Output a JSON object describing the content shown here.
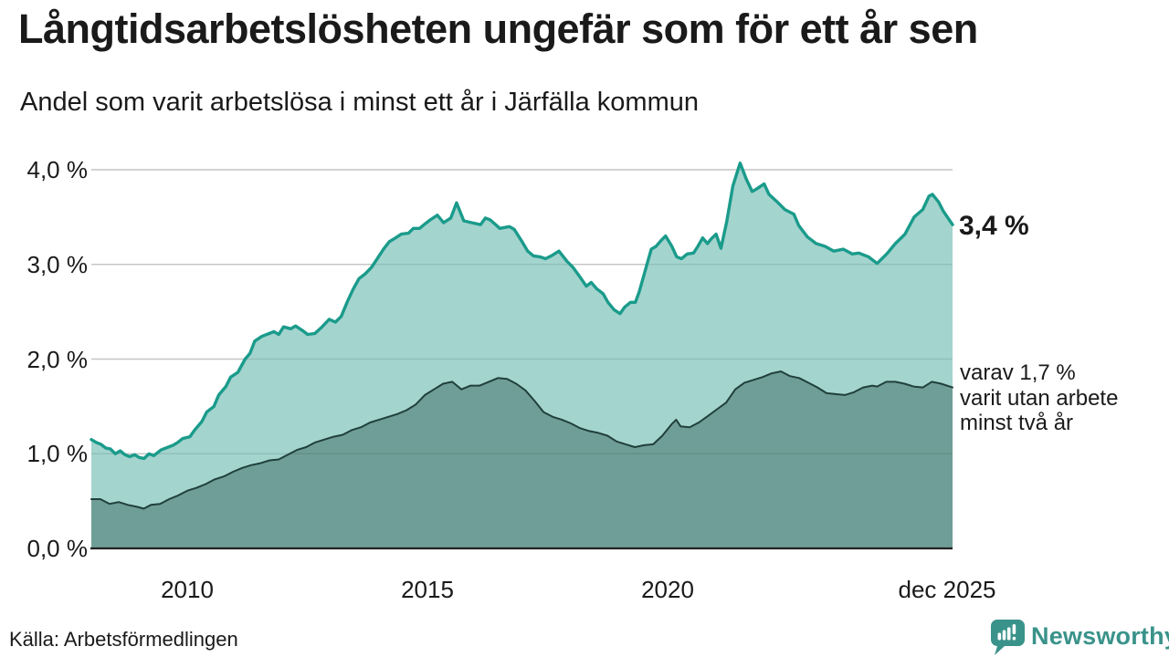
{
  "header": {
    "title": "Långtidsarbetslösheten ungefär som för ett år sen",
    "subtitle": "Andel som varit arbetslösa i minst ett år i Järfälla kommun"
  },
  "chart_data": {
    "type": "area",
    "unit": "%",
    "grid": true,
    "legend_position": "right-annotations",
    "xlim": [
      2008.0,
      2025.92
    ],
    "ylim": [
      0,
      4.3
    ],
    "xticks": [
      {
        "x": 2010,
        "label": "2010"
      },
      {
        "x": 2015,
        "label": "2015"
      },
      {
        "x": 2020,
        "label": "2020"
      },
      {
        "x": 2025.92,
        "label": "dec 2025"
      }
    ],
    "yticks": [
      {
        "value": 4.0,
        "label": "4,0 %"
      },
      {
        "value": 3.0,
        "label": "3,0 %"
      },
      {
        "value": 2.0,
        "label": "2,0 %"
      },
      {
        "value": 1.0,
        "label": "1,0 %"
      },
      {
        "value": 0.0,
        "label": "0,0 %"
      }
    ],
    "series": [
      {
        "name": "Andel som varit arbetslösa i minst ett år",
        "line_color": "#1a9b8b",
        "fill_color": "#a4d4ce",
        "line_width": 3.4,
        "end_value": 3.4,
        "end_label": "3,4 %",
        "points": [
          [
            2008.0,
            1.15
          ],
          [
            2008.1,
            1.12
          ],
          [
            2008.2,
            1.1
          ],
          [
            2008.3,
            1.06
          ],
          [
            2008.4,
            1.05
          ],
          [
            2008.5,
            1.0
          ],
          [
            2008.6,
            1.03
          ],
          [
            2008.7,
            0.99
          ],
          [
            2008.8,
            0.97
          ],
          [
            2008.9,
            0.99
          ],
          [
            2009.0,
            0.96
          ],
          [
            2009.1,
            0.95
          ],
          [
            2009.2,
            1.0
          ],
          [
            2009.3,
            0.98
          ],
          [
            2009.45,
            1.04
          ],
          [
            2009.6,
            1.07
          ],
          [
            2009.7,
            1.09
          ],
          [
            2009.8,
            1.12
          ],
          [
            2009.9,
            1.16
          ],
          [
            2010.05,
            1.18
          ],
          [
            2010.15,
            1.25
          ],
          [
            2010.3,
            1.34
          ],
          [
            2010.4,
            1.44
          ],
          [
            2010.55,
            1.5
          ],
          [
            2010.65,
            1.62
          ],
          [
            2010.8,
            1.71
          ],
          [
            2010.9,
            1.81
          ],
          [
            2011.05,
            1.86
          ],
          [
            2011.2,
            2.0
          ],
          [
            2011.3,
            2.06
          ],
          [
            2011.4,
            2.19
          ],
          [
            2011.55,
            2.24
          ],
          [
            2011.7,
            2.27
          ],
          [
            2011.8,
            2.29
          ],
          [
            2011.9,
            2.26
          ],
          [
            2012.0,
            2.34
          ],
          [
            2012.15,
            2.32
          ],
          [
            2012.25,
            2.35
          ],
          [
            2012.4,
            2.3
          ],
          [
            2012.5,
            2.26
          ],
          [
            2012.65,
            2.27
          ],
          [
            2012.8,
            2.34
          ],
          [
            2012.95,
            2.42
          ],
          [
            2013.08,
            2.39
          ],
          [
            2013.2,
            2.45
          ],
          [
            2013.33,
            2.61
          ],
          [
            2013.45,
            2.74
          ],
          [
            2013.57,
            2.85
          ],
          [
            2013.7,
            2.9
          ],
          [
            2013.83,
            2.97
          ],
          [
            2013.95,
            3.06
          ],
          [
            2014.08,
            3.16
          ],
          [
            2014.2,
            3.24
          ],
          [
            2014.33,
            3.28
          ],
          [
            2014.45,
            3.32
          ],
          [
            2014.6,
            3.33
          ],
          [
            2014.7,
            3.38
          ],
          [
            2014.83,
            3.38
          ],
          [
            2014.95,
            3.43
          ],
          [
            2015.05,
            3.47
          ],
          [
            2015.2,
            3.52
          ],
          [
            2015.33,
            3.44
          ],
          [
            2015.48,
            3.49
          ],
          [
            2015.6,
            3.65
          ],
          [
            2015.75,
            3.46
          ],
          [
            2015.92,
            3.44
          ],
          [
            2016.1,
            3.42
          ],
          [
            2016.2,
            3.49
          ],
          [
            2016.3,
            3.47
          ],
          [
            2016.5,
            3.38
          ],
          [
            2016.7,
            3.4
          ],
          [
            2016.8,
            3.37
          ],
          [
            2016.95,
            3.25
          ],
          [
            2017.08,
            3.14
          ],
          [
            2017.2,
            3.09
          ],
          [
            2017.33,
            3.08
          ],
          [
            2017.45,
            3.06
          ],
          [
            2017.57,
            3.09
          ],
          [
            2017.73,
            3.14
          ],
          [
            2017.9,
            3.03
          ],
          [
            2018.02,
            2.97
          ],
          [
            2018.15,
            2.88
          ],
          [
            2018.3,
            2.77
          ],
          [
            2018.4,
            2.81
          ],
          [
            2018.52,
            2.74
          ],
          [
            2018.65,
            2.69
          ],
          [
            2018.75,
            2.6
          ],
          [
            2018.88,
            2.52
          ],
          [
            2019.0,
            2.48
          ],
          [
            2019.1,
            2.55
          ],
          [
            2019.22,
            2.6
          ],
          [
            2019.32,
            2.6
          ],
          [
            2019.4,
            2.71
          ],
          [
            2019.55,
            2.98
          ],
          [
            2019.65,
            3.16
          ],
          [
            2019.75,
            3.19
          ],
          [
            2019.85,
            3.25
          ],
          [
            2019.95,
            3.3
          ],
          [
            2020.08,
            3.19
          ],
          [
            2020.18,
            3.08
          ],
          [
            2020.28,
            3.06
          ],
          [
            2020.4,
            3.11
          ],
          [
            2020.53,
            3.12
          ],
          [
            2020.62,
            3.19
          ],
          [
            2020.72,
            3.28
          ],
          [
            2020.82,
            3.22
          ],
          [
            2020.9,
            3.27
          ],
          [
            2021.0,
            3.32
          ],
          [
            2021.1,
            3.17
          ],
          [
            2021.22,
            3.45
          ],
          [
            2021.35,
            3.83
          ],
          [
            2021.5,
            4.07
          ],
          [
            2021.63,
            3.9
          ],
          [
            2021.75,
            3.77
          ],
          [
            2021.85,
            3.8
          ],
          [
            2022.0,
            3.85
          ],
          [
            2022.1,
            3.74
          ],
          [
            2022.25,
            3.67
          ],
          [
            2022.43,
            3.58
          ],
          [
            2022.62,
            3.53
          ],
          [
            2022.72,
            3.41
          ],
          [
            2022.9,
            3.29
          ],
          [
            2023.08,
            3.22
          ],
          [
            2023.27,
            3.19
          ],
          [
            2023.45,
            3.14
          ],
          [
            2023.65,
            3.16
          ],
          [
            2023.83,
            3.11
          ],
          [
            2023.97,
            3.12
          ],
          [
            2024.17,
            3.08
          ],
          [
            2024.35,
            3.01
          ],
          [
            2024.55,
            3.11
          ],
          [
            2024.73,
            3.22
          ],
          [
            2024.93,
            3.32
          ],
          [
            2025.12,
            3.5
          ],
          [
            2025.3,
            3.58
          ],
          [
            2025.43,
            3.72
          ],
          [
            2025.5,
            3.74
          ],
          [
            2025.63,
            3.66
          ],
          [
            2025.73,
            3.56
          ],
          [
            2025.92,
            3.42
          ]
        ]
      },
      {
        "name": "varav varit utan arbete minst två år",
        "line_color": "#20403c",
        "fill_color": "#6f9d97",
        "line_width": 2,
        "end_value": 1.7,
        "end_label_lines": [
          "varav 1,7 %",
          "varit utan arbete",
          "minst två år"
        ],
        "points": [
          [
            2008.0,
            0.52
          ],
          [
            2008.19,
            0.52
          ],
          [
            2008.38,
            0.47
          ],
          [
            2008.57,
            0.49
          ],
          [
            2008.76,
            0.46
          ],
          [
            2008.95,
            0.44
          ],
          [
            2009.09,
            0.42
          ],
          [
            2009.24,
            0.46
          ],
          [
            2009.43,
            0.47
          ],
          [
            2009.62,
            0.52
          ],
          [
            2009.81,
            0.56
          ],
          [
            2010.0,
            0.61
          ],
          [
            2010.19,
            0.64
          ],
          [
            2010.38,
            0.68
          ],
          [
            2010.57,
            0.73
          ],
          [
            2010.76,
            0.76
          ],
          [
            2010.95,
            0.81
          ],
          [
            2011.14,
            0.85
          ],
          [
            2011.33,
            0.88
          ],
          [
            2011.52,
            0.9
          ],
          [
            2011.71,
            0.93
          ],
          [
            2011.9,
            0.94
          ],
          [
            2012.09,
            0.99
          ],
          [
            2012.28,
            1.04
          ],
          [
            2012.47,
            1.07
          ],
          [
            2012.66,
            1.12
          ],
          [
            2012.85,
            1.15
          ],
          [
            2013.04,
            1.18
          ],
          [
            2013.23,
            1.2
          ],
          [
            2013.42,
            1.25
          ],
          [
            2013.61,
            1.28
          ],
          [
            2013.8,
            1.33
          ],
          [
            2013.99,
            1.36
          ],
          [
            2014.18,
            1.39
          ],
          [
            2014.37,
            1.42
          ],
          [
            2014.56,
            1.46
          ],
          [
            2014.75,
            1.52
          ],
          [
            2014.94,
            1.62
          ],
          [
            2015.13,
            1.68
          ],
          [
            2015.32,
            1.74
          ],
          [
            2015.51,
            1.76
          ],
          [
            2015.7,
            1.68
          ],
          [
            2015.89,
            1.72
          ],
          [
            2016.08,
            1.72
          ],
          [
            2016.27,
            1.76
          ],
          [
            2016.46,
            1.8
          ],
          [
            2016.65,
            1.79
          ],
          [
            2016.84,
            1.74
          ],
          [
            2017.03,
            1.67
          ],
          [
            2017.22,
            1.56
          ],
          [
            2017.41,
            1.44
          ],
          [
            2017.6,
            1.39
          ],
          [
            2017.79,
            1.36
          ],
          [
            2017.98,
            1.32
          ],
          [
            2018.17,
            1.27
          ],
          [
            2018.36,
            1.24
          ],
          [
            2018.55,
            1.22
          ],
          [
            2018.74,
            1.19
          ],
          [
            2018.93,
            1.13
          ],
          [
            2019.12,
            1.1
          ],
          [
            2019.31,
            1.07
          ],
          [
            2019.5,
            1.09
          ],
          [
            2019.69,
            1.1
          ],
          [
            2019.88,
            1.19
          ],
          [
            2020.07,
            1.31
          ],
          [
            2020.17,
            1.36
          ],
          [
            2020.26,
            1.29
          ],
          [
            2020.45,
            1.28
          ],
          [
            2020.64,
            1.33
          ],
          [
            2020.83,
            1.4
          ],
          [
            2021.02,
            1.47
          ],
          [
            2021.21,
            1.54
          ],
          [
            2021.4,
            1.68
          ],
          [
            2021.59,
            1.75
          ],
          [
            2021.78,
            1.78
          ],
          [
            2021.97,
            1.81
          ],
          [
            2022.16,
            1.85
          ],
          [
            2022.35,
            1.87
          ],
          [
            2022.54,
            1.82
          ],
          [
            2022.73,
            1.8
          ],
          [
            2022.92,
            1.75
          ],
          [
            2023.11,
            1.7
          ],
          [
            2023.3,
            1.64
          ],
          [
            2023.49,
            1.63
          ],
          [
            2023.68,
            1.62
          ],
          [
            2023.87,
            1.65
          ],
          [
            2024.06,
            1.7
          ],
          [
            2024.25,
            1.72
          ],
          [
            2024.35,
            1.71
          ],
          [
            2024.54,
            1.76
          ],
          [
            2024.73,
            1.76
          ],
          [
            2024.92,
            1.74
          ],
          [
            2025.11,
            1.71
          ],
          [
            2025.3,
            1.7
          ],
          [
            2025.49,
            1.76
          ],
          [
            2025.68,
            1.74
          ],
          [
            2025.92,
            1.7
          ]
        ]
      }
    ],
    "colors": {
      "grid": "#dcdcdc",
      "axis": "#222222",
      "text": "#1a1a1a"
    }
  },
  "footer": {
    "source": "Källa: Arbetsförmedlingen",
    "logo_text": "Newsworthy",
    "logo_color": "#3a938a"
  }
}
